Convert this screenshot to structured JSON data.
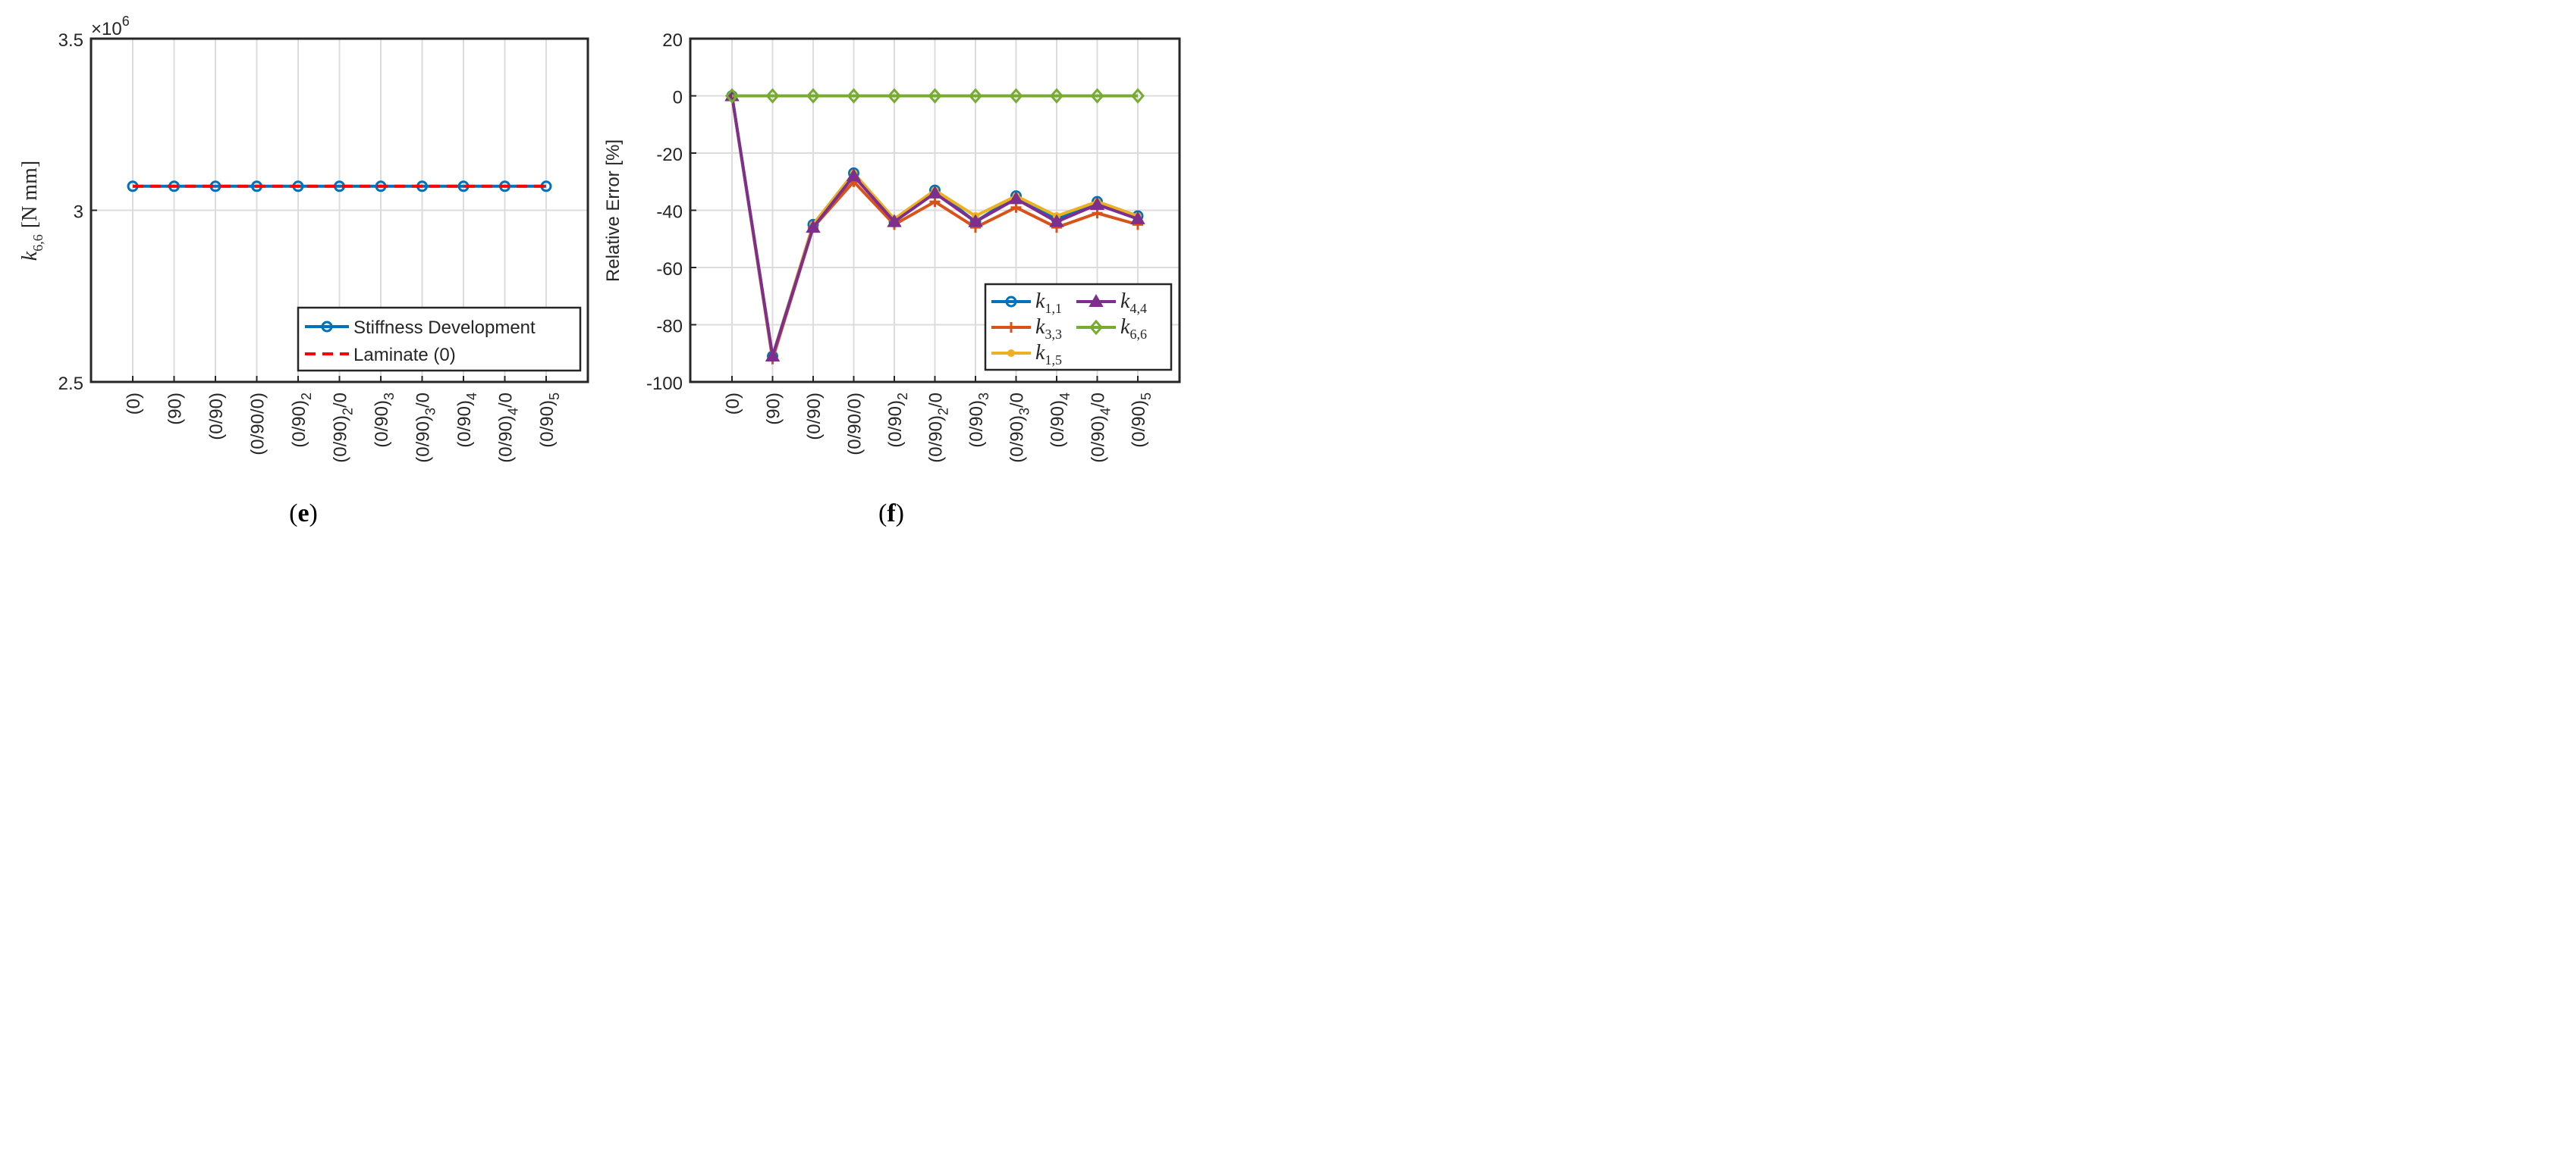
{
  "chart_data": [
    {
      "type": "line",
      "panel": "e",
      "caption_open": "(",
      "caption_letter": "e",
      "caption_close": ")",
      "ylabel_sym": "k",
      "ylabel_sub": "6,6",
      "ylabel_unit": "[N mm]",
      "y_exponent_base": "×10",
      "y_exponent_power": "6",
      "ylim": [
        2.5,
        3.5
      ],
      "yticks": [
        "2.5",
        "3",
        "3.5"
      ],
      "categories": [
        [
          "(0)",
          ""
        ],
        [
          "(90)",
          ""
        ],
        [
          "(0/90)",
          ""
        ],
        [
          "(0/90/0)",
          ""
        ],
        [
          "(0/90)",
          "2"
        ],
        [
          "(0/90)",
          "2",
          "/0"
        ],
        [
          "(0/90)",
          "3"
        ],
        [
          "(0/90)",
          "3",
          "/0"
        ],
        [
          "(0/90)",
          "4"
        ],
        [
          "(0/90)",
          "4",
          "/0"
        ],
        [
          "(0/90)",
          "5"
        ]
      ],
      "series": [
        {
          "name": "Stiffness Development",
          "color": "#0072BD",
          "marker": "circle",
          "dash": "solid",
          "values": [
            3.07,
            3.07,
            3.07,
            3.07,
            3.07,
            3.07,
            3.07,
            3.07,
            3.07,
            3.07,
            3.07
          ]
        },
        {
          "name": "Laminate (0)",
          "color": "#FF0000",
          "marker": "none",
          "dash": "dashed",
          "values": [
            3.07,
            3.07,
            3.07,
            3.07,
            3.07,
            3.07,
            3.07,
            3.07,
            3.07,
            3.07,
            3.07
          ]
        }
      ],
      "legend_position": "bottom-right"
    },
    {
      "type": "line",
      "panel": "f",
      "caption_open": "(",
      "caption_letter": "f",
      "caption_close": ")",
      "ylabel": "Relative Error [%]",
      "ylim": [
        -100,
        20
      ],
      "yticks": [
        "-100",
        "-80",
        "-60",
        "-40",
        "-20",
        "0",
        "20"
      ],
      "categories": [
        [
          "(0)",
          ""
        ],
        [
          "(90)",
          ""
        ],
        [
          "(0/90)",
          ""
        ],
        [
          "(0/90/0)",
          ""
        ],
        [
          "(0/90)",
          "2"
        ],
        [
          "(0/90)",
          "2",
          "/0"
        ],
        [
          "(0/90)",
          "3"
        ],
        [
          "(0/90)",
          "3",
          "/0"
        ],
        [
          "(0/90)",
          "4"
        ],
        [
          "(0/90)",
          "4",
          "/0"
        ],
        [
          "(0/90)",
          "5"
        ]
      ],
      "series": [
        {
          "name": "k",
          "sub": "1,1",
          "color": "#0072BD",
          "marker": "circle",
          "values": [
            0,
            -91,
            -45,
            -27,
            -44,
            -33,
            -44,
            -35,
            -43,
            -37,
            -42
          ]
        },
        {
          "name": "k",
          "sub": "3,3",
          "color": "#D95319",
          "marker": "plus",
          "values": [
            0,
            -92,
            -46,
            -30,
            -45,
            -37,
            -46,
            -39,
            -46,
            -41,
            -45
          ]
        },
        {
          "name": "k",
          "sub": "1,5",
          "color": "#EDB120",
          "marker": "dot",
          "values": [
            0,
            -91,
            -45,
            -27,
            -43,
            -33,
            -42,
            -35,
            -42,
            -37,
            -42
          ]
        },
        {
          "name": "k",
          "sub": "4,4",
          "color": "#7E2F8E",
          "marker": "triangle",
          "values": [
            0,
            -91,
            -46,
            -28,
            -44,
            -34,
            -44,
            -36,
            -44,
            -38,
            -43
          ]
        },
        {
          "name": "k",
          "sub": "6,6",
          "color": "#77AC30",
          "marker": "diamond",
          "values": [
            0,
            0,
            0,
            0,
            0,
            0,
            0,
            0,
            0,
            0,
            0
          ]
        }
      ],
      "legend_position": "bottom-right"
    }
  ]
}
